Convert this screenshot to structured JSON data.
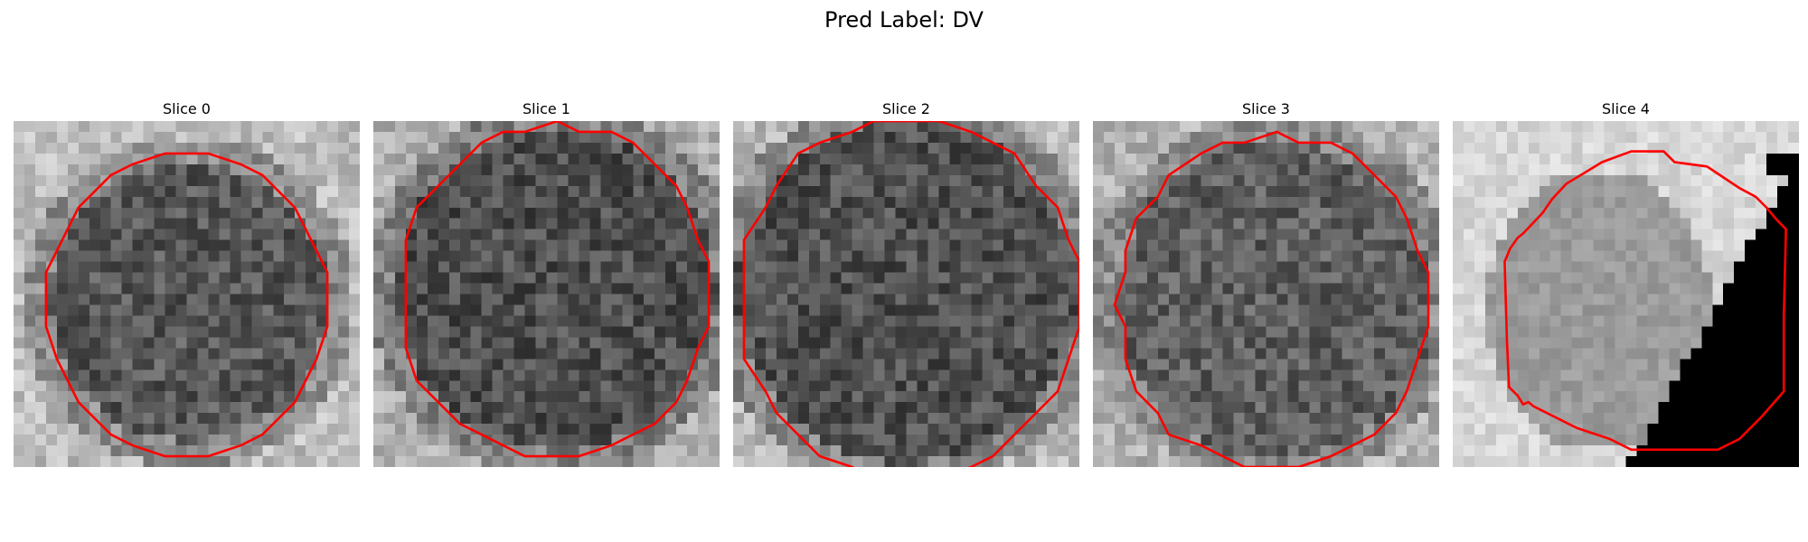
{
  "figure": {
    "title": "Pred Label: DV"
  },
  "panels": [
    {
      "title": "Slice 0"
    },
    {
      "title": "Slice 1"
    },
    {
      "title": "Slice 2"
    },
    {
      "title": "Slice 3"
    },
    {
      "title": "Slice 4"
    }
  ],
  "colors": {
    "contour": "#ff0000",
    "background": "#ffffff"
  },
  "colormap": "gray"
}
